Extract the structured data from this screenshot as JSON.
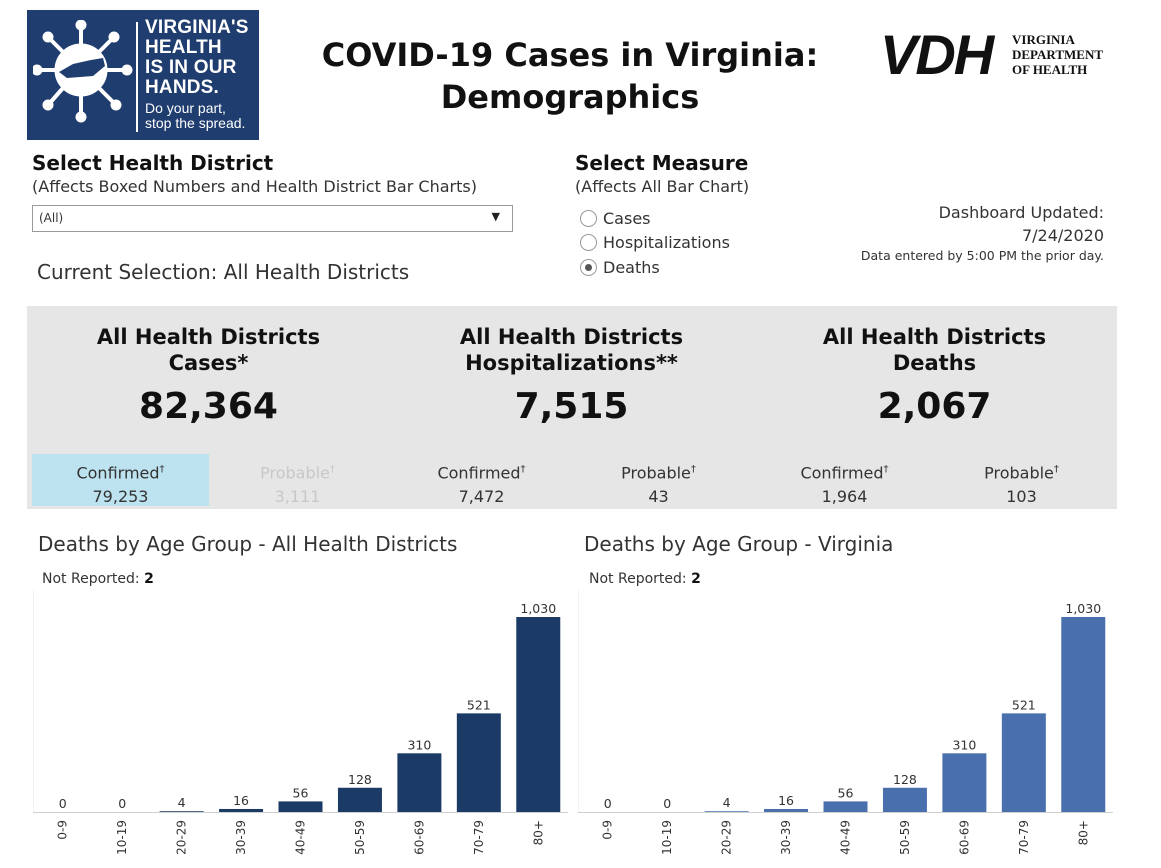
{
  "logo": {
    "lines": [
      "VIRGINIA'S",
      "HEALTH",
      "IS IN OUR",
      "HANDS."
    ],
    "tagline": [
      "Do your part,",
      "stop the spread."
    ]
  },
  "title": [
    "COVID-19 Cases in Virginia:",
    "Demographics"
  ],
  "vdh_logo": {
    "letters": "VDH",
    "dept": [
      "VIRGINIA",
      "DEPARTMENT",
      "OF HEALTH"
    ]
  },
  "district": {
    "title": "Select Health District",
    "subtitle": "(Affects Boxed Numbers and Health District Bar Charts)",
    "selected": "(All)",
    "current": "Current Selection: All Health Districts"
  },
  "measure": {
    "title": "Select Measure",
    "subtitle": "(Affects All Bar Chart)",
    "options": [
      "Cases",
      "Hospitalizations",
      "Deaths"
    ],
    "selected": "Deaths"
  },
  "updated": {
    "label": "Dashboard Updated:",
    "date": "7/24/2020",
    "note": "Data entered by 5:00 PM the prior day."
  },
  "summary": [
    {
      "header": [
        "All Health Districts",
        "Cases*"
      ],
      "total": "82,364",
      "confirmed_label": "Confirmed",
      "confirmed": "79,253",
      "probable_label": "Probable",
      "probable": "3,111"
    },
    {
      "header": [
        "All Health Districts",
        "Hospitalizations**"
      ],
      "total": "7,515",
      "confirmed_label": "Confirmed",
      "confirmed": "7,472",
      "probable_label": "Probable",
      "probable": "43"
    },
    {
      "header": [
        "All Health Districts",
        "Deaths"
      ],
      "total": "2,067",
      "confirmed_label": "Confirmed",
      "confirmed": "1,964",
      "probable_label": "Probable",
      "probable": "103"
    }
  ],
  "dagger": "†",
  "charts_meta": [
    {
      "title": "Deaths by Age Group - All Health Districts",
      "not_reported_label": "Not Reported:",
      "not_reported": "2",
      "color": "#1c3a66"
    },
    {
      "title": "Deaths by Age Group - Virginia",
      "not_reported_label": "Not Reported:",
      "not_reported": "2",
      "color": "#4a6fad"
    }
  ],
  "chart_data": [
    {
      "type": "bar",
      "title": "Deaths by Age Group - All Health Districts",
      "categories": [
        "0-9",
        "10-19",
        "20-29",
        "30-39",
        "40-49",
        "50-59",
        "60-69",
        "70-79",
        "80+"
      ],
      "values": [
        0,
        0,
        4,
        16,
        56,
        128,
        310,
        521,
        1030
      ],
      "labels": [
        "0",
        "0",
        "4",
        "16",
        "56",
        "128",
        "310",
        "521",
        "1,030"
      ]
    },
    {
      "type": "bar",
      "title": "Deaths by Age Group - Virginia",
      "categories": [
        "0-9",
        "10-19",
        "20-29",
        "30-39",
        "40-49",
        "50-59",
        "60-69",
        "70-79",
        "80+"
      ],
      "values": [
        0,
        0,
        4,
        16,
        56,
        128,
        310,
        521,
        1030
      ],
      "labels": [
        "0",
        "0",
        "4",
        "16",
        "56",
        "128",
        "310",
        "521",
        "1,030"
      ]
    }
  ]
}
